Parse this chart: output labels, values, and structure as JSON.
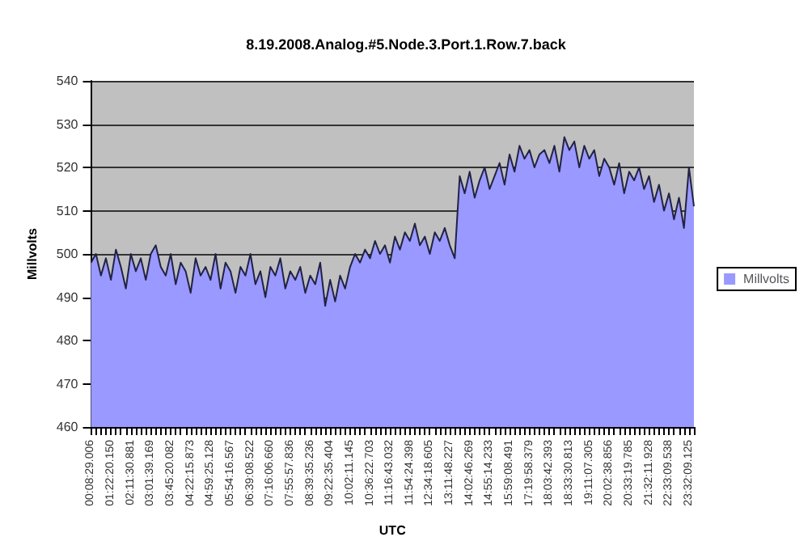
{
  "chart_data": {
    "type": "area",
    "title": "8.19.2008.Analog.#5.Node.3.Port.1.Row.7.back",
    "xlabel": "UTC",
    "ylabel": "Millvolts",
    "categories": [
      "00:08:29.006",
      null,
      null,
      null,
      "01:22:20.150",
      null,
      null,
      null,
      "02:11:30.881",
      null,
      null,
      null,
      "03:01:39.169",
      null,
      null,
      null,
      "03:45:20.082",
      null,
      null,
      null,
      "04:22:15.873",
      null,
      null,
      null,
      "04:59:25.128",
      null,
      null,
      null,
      "05:54:16.567",
      null,
      null,
      null,
      "06:39:08.522",
      null,
      null,
      null,
      "07:16:06.660",
      null,
      null,
      null,
      "07:55:57.836",
      null,
      null,
      null,
      "08:39:35.236",
      null,
      null,
      null,
      "09:22:35.404",
      null,
      null,
      null,
      "10:02:11.145",
      null,
      null,
      null,
      "10:36:22.703",
      null,
      null,
      null,
      "11:16:43.032",
      null,
      null,
      null,
      "11:54:24.398",
      null,
      null,
      null,
      "12:34:18.605",
      null,
      null,
      null,
      "13:11:48.227",
      null,
      null,
      null,
      "14:02:46.269",
      null,
      null,
      null,
      "14:55:14.233",
      null,
      null,
      null,
      "15:59:08.491",
      null,
      null,
      null,
      "17:19:58.379",
      null,
      null,
      null,
      "18:03:42.393",
      null,
      null,
      null,
      "18:33:30.813",
      null,
      null,
      null,
      "19:11:07.305",
      null,
      null,
      null,
      "20:02:38.856",
      null,
      null,
      null,
      "20:33:19.785",
      null,
      null,
      null,
      "21:32:11.928",
      null,
      null,
      null,
      "22:33:09.538",
      null,
      null,
      null,
      "23:32:09.125",
      null
    ],
    "series": [
      {
        "name": "Millvolts",
        "color": "#9999ff",
        "values": [
          498,
          500,
          495,
          499,
          494,
          501,
          497,
          492,
          500,
          496,
          499,
          494,
          500,
          502,
          497,
          495,
          500,
          493,
          498,
          496,
          491,
          499,
          495,
          497,
          494,
          500,
          492,
          498,
          496,
          491,
          497,
          495,
          500,
          493,
          496,
          490,
          497,
          495,
          499,
          492,
          496,
          494,
          497,
          491,
          495,
          493,
          498,
          488,
          494,
          489,
          495,
          492,
          497,
          500,
          498,
          501,
          499,
          503,
          500,
          502,
          498,
          504,
          501,
          505,
          503,
          507,
          502,
          504,
          500,
          505,
          503,
          506,
          502,
          499,
          518,
          514,
          519,
          513,
          517,
          520,
          515,
          518,
          521,
          516,
          523,
          519,
          525,
          522,
          524,
          520,
          523,
          524,
          521,
          525,
          519,
          527,
          524,
          526,
          520,
          525,
          522,
          524,
          518,
          522,
          520,
          516,
          521,
          514,
          519,
          517,
          520,
          515,
          518,
          512,
          516,
          510,
          514,
          508,
          513,
          506,
          520,
          511
        ]
      }
    ],
    "ylim": [
      460,
      540
    ],
    "yticks": [
      460,
      470,
      480,
      490,
      500,
      510,
      520,
      530,
      540
    ],
    "grid": "y",
    "legend": "right",
    "marker": "none"
  }
}
